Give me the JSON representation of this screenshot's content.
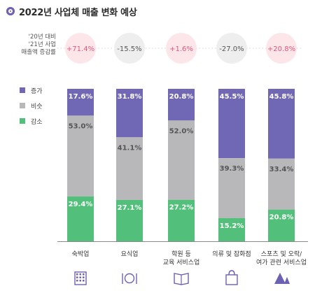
{
  "title": "2022년 사업체 매출 변화 예상",
  "yoy_label_lines": [
    "'20년 대비",
    "'21년 사업",
    "매출액 증감률"
  ],
  "colors": {
    "increase": "#7168b5",
    "same": "#b8b8bb",
    "decrease": "#52c07a",
    "accent": "#6b62b1",
    "pos_circle": "#fde6ea",
    "pos_text": "#e0587a",
    "neg_circle": "#eeeeee",
    "neg_text": "#555555"
  },
  "legend": [
    {
      "label": "증가",
      "color_key": "increase"
    },
    {
      "label": "비슷",
      "color_key": "same"
    },
    {
      "label": "감소",
      "color_key": "decrease"
    }
  ],
  "chart_data": {
    "type": "bar",
    "stacked": true,
    "percent_stacked": true,
    "categories": [
      [
        "숙박업"
      ],
      [
        "요식업"
      ],
      [
        "학원 등",
        "교육 서비스업"
      ],
      [
        "의류 및 잡화점"
      ],
      [
        "스포츠 및 오락/",
        "여가 관련 서비스업"
      ]
    ],
    "category_icons": [
      "building-icon",
      "dining-icon",
      "book-icon",
      "shopping-bag-icon",
      "camping-icon"
    ],
    "yoy_change": [
      "+71.4%",
      "-15.5%",
      "+1.6%",
      "-27.0%",
      "+20.8%"
    ],
    "series": [
      {
        "name": "증가",
        "values": [
          17.6,
          31.8,
          20.8,
          45.5,
          45.8
        ]
      },
      {
        "name": "비슷",
        "values": [
          53.0,
          41.1,
          52.0,
          39.3,
          33.4
        ]
      },
      {
        "name": "감소",
        "values": [
          29.4,
          27.1,
          27.2,
          15.2,
          20.8
        ]
      }
    ],
    "value_labels": [
      [
        "17.6%",
        "31.8%",
        "20.8%",
        "45.5%",
        "45.8%"
      ],
      [
        "53.0%",
        "41.1%",
        "52.0%",
        "39.3%",
        "33.4%"
      ],
      [
        "29.4%",
        "27.1%",
        "27.2%",
        "15.2%",
        "20.8%"
      ]
    ],
    "ylim": [
      0,
      100
    ],
    "legend_position": "left"
  }
}
